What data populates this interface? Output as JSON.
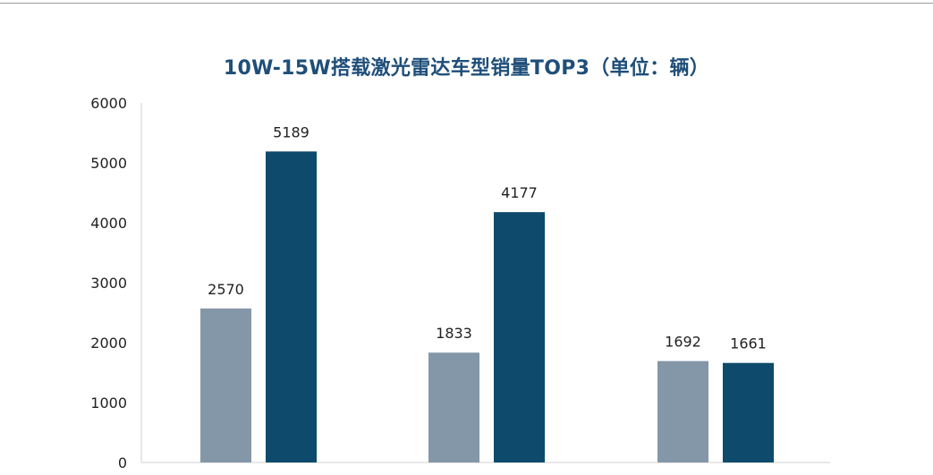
{
  "chart_data": {
    "type": "bar",
    "title": "10W-15W搭载激光雷达车型销量TOP3（单位：辆）",
    "categories": [
      "",
      "",
      ""
    ],
    "series": [
      {
        "values": [
          2570,
          1833,
          1692
        ],
        "color": "#8497a8"
      },
      {
        "values": [
          5189,
          4177,
          1661
        ],
        "color": "#0d4a6b"
      }
    ],
    "ylim": [
      0,
      6000
    ],
    "yticks": [
      0,
      1000,
      2000,
      3000,
      4000,
      5000,
      6000
    ],
    "grid": false,
    "legend": "none",
    "xlabel": "",
    "ylabel": ""
  }
}
